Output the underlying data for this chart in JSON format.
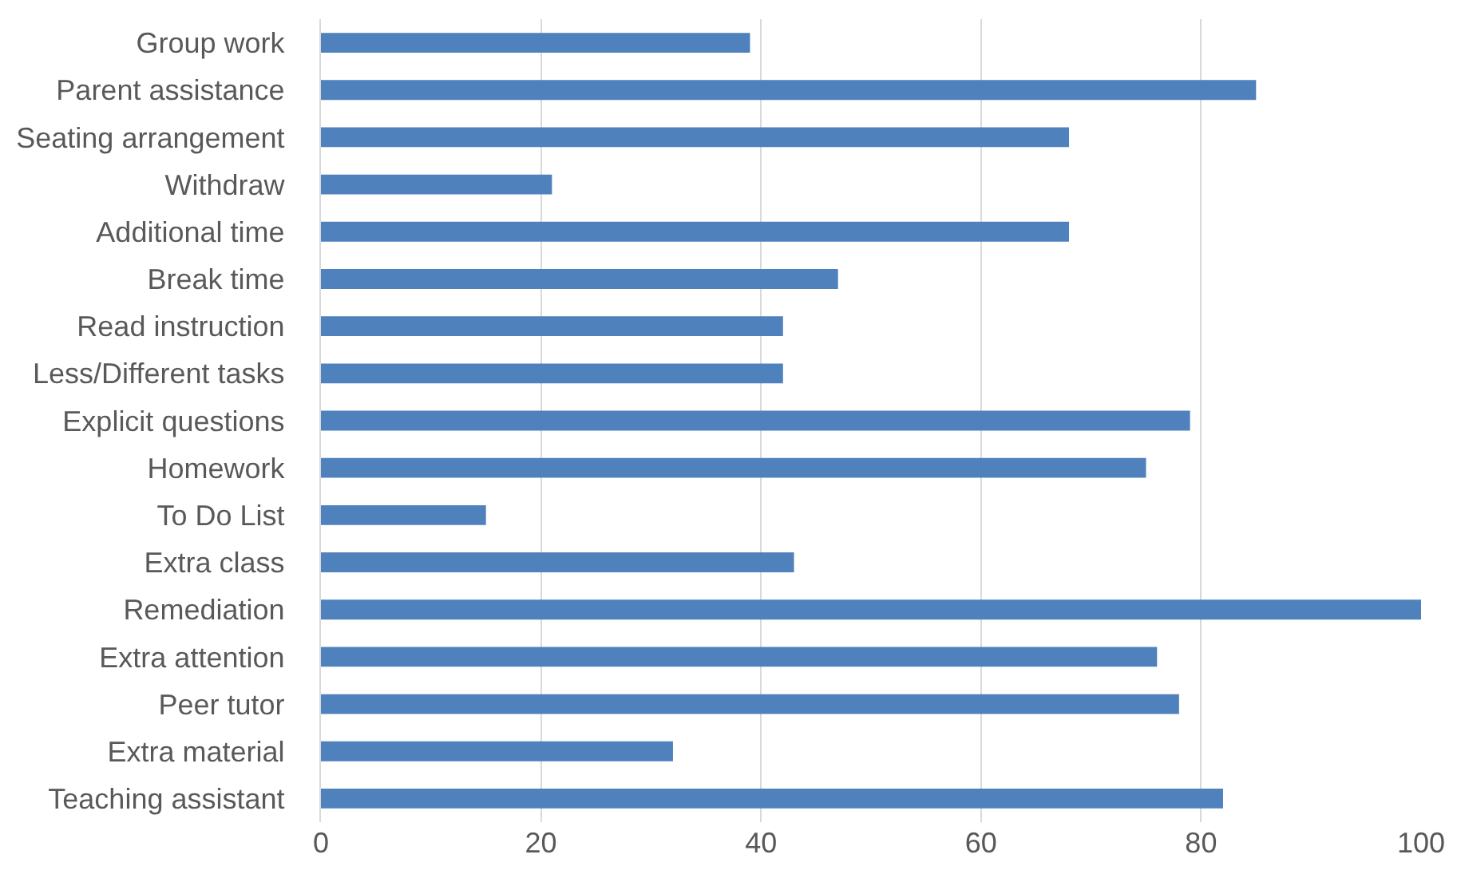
{
  "chart_data": {
    "type": "bar",
    "orientation": "horizontal",
    "categories": [
      "Group work",
      "Parent assistance",
      "Seating arrangement",
      "Withdraw",
      "Additional time",
      "Break time",
      "Read instruction",
      "Less/Different tasks",
      "Explicit questions",
      "Homework",
      "To Do List",
      "Extra class",
      "Remediation",
      "Extra attention",
      "Peer tutor",
      "Extra material",
      "Teaching assistant"
    ],
    "values": [
      39,
      85,
      68,
      21,
      68,
      47,
      42,
      42,
      79,
      75,
      15,
      43,
      100,
      76,
      78,
      32,
      82
    ],
    "color": "#4f81bd",
    "xlim": [
      0,
      100
    ],
    "xticks": [
      0,
      20,
      40,
      60,
      80,
      100
    ],
    "grid": "x"
  }
}
